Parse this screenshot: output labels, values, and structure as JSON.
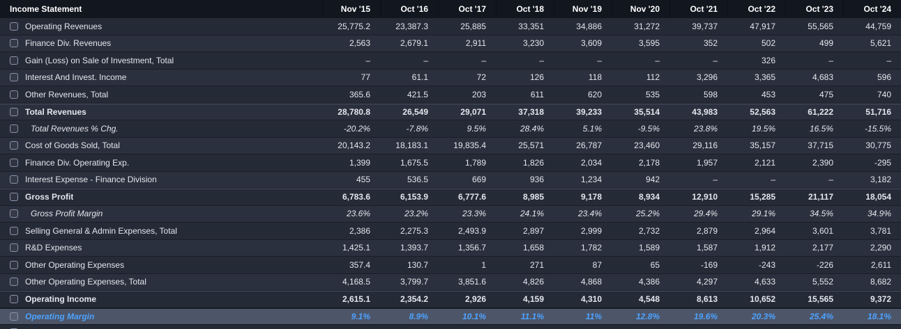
{
  "colors": {
    "accent": "#4da3ff",
    "highlight_bg": "#4d5568"
  },
  "table": {
    "title": "Income Statement",
    "columns": [
      "Nov '15",
      "Oct '16",
      "Oct '17",
      "Oct '18",
      "Nov '19",
      "Nov '20",
      "Oct '21",
      "Oct '22",
      "Oct '23",
      "Oct '24"
    ],
    "rows": [
      {
        "label": "Operating Revenues",
        "style": "normal",
        "values": [
          "25,775.2",
          "23,387.3",
          "25,885",
          "33,351",
          "34,886",
          "31,272",
          "39,737",
          "47,917",
          "55,565",
          "44,759"
        ]
      },
      {
        "label": "Finance Div. Revenues",
        "style": "normal",
        "values": [
          "2,563",
          "2,679.1",
          "2,911",
          "3,230",
          "3,609",
          "3,595",
          "352",
          "502",
          "499",
          "5,621"
        ]
      },
      {
        "label": "Gain (Loss) on Sale of Investment, Total",
        "style": "normal",
        "values": [
          "–",
          "–",
          "–",
          "–",
          "–",
          "–",
          "–",
          "326",
          "–",
          "–"
        ]
      },
      {
        "label": "Interest And Invest. Income",
        "style": "normal",
        "values": [
          "77",
          "61.1",
          "72",
          "126",
          "118",
          "112",
          "3,296",
          "3,365",
          "4,683",
          "596"
        ]
      },
      {
        "label": "Other Revenues, Total",
        "style": "normal",
        "values": [
          "365.6",
          "421.5",
          "203",
          "611",
          "620",
          "535",
          "598",
          "453",
          "475",
          "740"
        ]
      },
      {
        "label": "Total Revenues",
        "style": "bold",
        "separator": true,
        "values": [
          "28,780.8",
          "26,549",
          "29,071",
          "37,318",
          "39,233",
          "35,514",
          "43,983",
          "52,563",
          "61,222",
          "51,716"
        ]
      },
      {
        "label": "Total Revenues % Chg.",
        "style": "pct",
        "values": [
          "-20.2%",
          "-7.8%",
          "9.5%",
          "28.4%",
          "5.1%",
          "-9.5%",
          "23.8%",
          "19.5%",
          "16.5%",
          "-15.5%"
        ]
      },
      {
        "label": "Cost of Goods Sold, Total",
        "style": "normal",
        "values": [
          "20,143.2",
          "18,183.1",
          "19,835.4",
          "25,571",
          "26,787",
          "23,460",
          "29,116",
          "35,157",
          "37,715",
          "30,775"
        ]
      },
      {
        "label": "Finance Div. Operating Exp.",
        "style": "normal",
        "values": [
          "1,399",
          "1,675.5",
          "1,789",
          "1,826",
          "2,034",
          "2,178",
          "1,957",
          "2,121",
          "2,390",
          "-295"
        ]
      },
      {
        "label": "Interest Expense - Finance Division",
        "style": "normal",
        "values": [
          "455",
          "536.5",
          "669",
          "936",
          "1,234",
          "942",
          "–",
          "–",
          "–",
          "3,182"
        ]
      },
      {
        "label": "Gross Profit",
        "style": "bold",
        "separator": true,
        "values": [
          "6,783.6",
          "6,153.9",
          "6,777.6",
          "8,985",
          "9,178",
          "8,934",
          "12,910",
          "15,285",
          "21,117",
          "18,054"
        ]
      },
      {
        "label": "Gross Profit Margin",
        "style": "pct",
        "values": [
          "23.6%",
          "23.2%",
          "23.3%",
          "24.1%",
          "23.4%",
          "25.2%",
          "29.4%",
          "29.1%",
          "34.5%",
          "34.9%"
        ]
      },
      {
        "label": "Selling General & Admin Expenses, Total",
        "style": "normal",
        "values": [
          "2,386",
          "2,275.3",
          "2,493.9",
          "2,897",
          "2,999",
          "2,732",
          "2,879",
          "2,964",
          "3,601",
          "3,781"
        ]
      },
      {
        "label": "R&D Expenses",
        "style": "normal",
        "values": [
          "1,425.1",
          "1,393.7",
          "1,356.7",
          "1,658",
          "1,782",
          "1,589",
          "1,587",
          "1,912",
          "2,177",
          "2,290"
        ]
      },
      {
        "label": "Other Operating Expenses",
        "style": "normal",
        "values": [
          "357.4",
          "130.7",
          "1",
          "271",
          "87",
          "65",
          "-169",
          "-243",
          "-226",
          "2,611"
        ]
      },
      {
        "label": "Other Operating Expenses, Total",
        "style": "normal",
        "values": [
          "4,168.5",
          "3,799.7",
          "3,851.6",
          "4,826",
          "4,868",
          "4,386",
          "4,297",
          "4,633",
          "5,552",
          "8,682"
        ]
      },
      {
        "label": "Operating Income",
        "style": "bold",
        "separator": true,
        "values": [
          "2,615.1",
          "2,354.2",
          "2,926",
          "4,159",
          "4,310",
          "4,548",
          "8,613",
          "10,652",
          "15,565",
          "9,372"
        ]
      },
      {
        "label": "Operating Margin",
        "style": "highlight",
        "separator": true,
        "values": [
          "9.1%",
          "8.9%",
          "10.1%",
          "11.1%",
          "11%",
          "12.8%",
          "19.6%",
          "20.3%",
          "25.4%",
          "18.1%"
        ]
      }
    ]
  }
}
